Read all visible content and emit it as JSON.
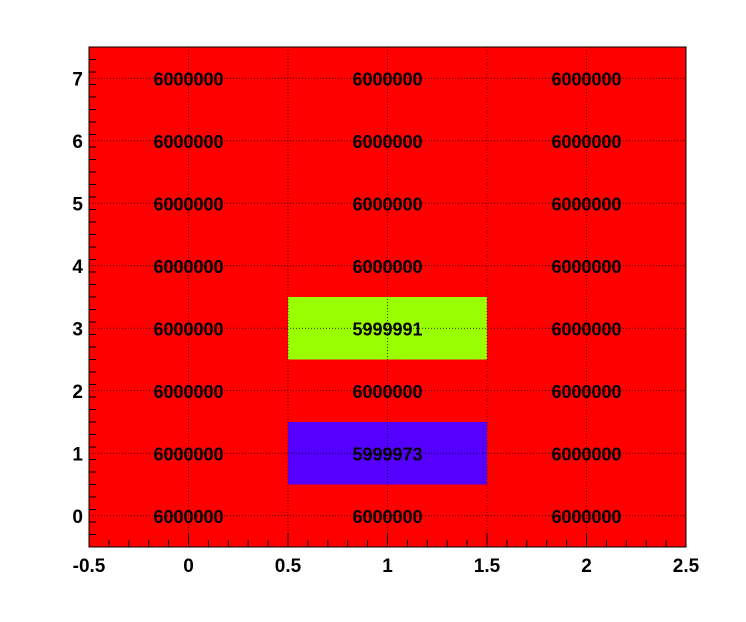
{
  "chart_data": {
    "type": "heatmap",
    "title": "",
    "xlabel": "",
    "ylabel": "",
    "xlim": [
      -0.5,
      2.5
    ],
    "ylim": [
      -0.5,
      7.5
    ],
    "x_ticks": [
      -0.5,
      0,
      0.5,
      1,
      1.5,
      2,
      2.5
    ],
    "x_tick_labels": [
      "-0.5",
      "0",
      "0.5",
      "1",
      "1.5",
      "2",
      "2.5"
    ],
    "y_ticks": [
      0,
      1,
      2,
      3,
      4,
      5,
      6,
      7
    ],
    "y_tick_labels": [
      "0",
      "1",
      "2",
      "3",
      "4",
      "5",
      "6",
      "7"
    ],
    "grid": true,
    "cell_labels": true,
    "x": [
      0,
      1,
      2
    ],
    "y": [
      0,
      1,
      2,
      3,
      4,
      5,
      6,
      7
    ],
    "values": [
      [
        6000000,
        6000000,
        6000000
      ],
      [
        6000000,
        5999973,
        6000000
      ],
      [
        6000000,
        6000000,
        6000000
      ],
      [
        6000000,
        5999991,
        6000000
      ],
      [
        6000000,
        6000000,
        6000000
      ],
      [
        6000000,
        6000000,
        6000000
      ],
      [
        6000000,
        6000000,
        6000000
      ],
      [
        6000000,
        6000000,
        6000000
      ]
    ],
    "value_labels": [
      [
        "6000000",
        "6000000",
        "6000000"
      ],
      [
        "6000000",
        "5999973",
        "6000000"
      ],
      [
        "6000000",
        "6000000",
        "6000000"
      ],
      [
        "6000000",
        "5999991",
        "6000000"
      ],
      [
        "6000000",
        "6000000",
        "6000000"
      ],
      [
        "6000000",
        "6000000",
        "6000000"
      ],
      [
        "6000000",
        "6000000",
        "6000000"
      ],
      [
        "6000000",
        "6000000",
        "6000000"
      ]
    ],
    "colors": {
      "6000000": "#ff0000",
      "5999991": "#99ff00",
      "5999973": "#5500ff",
      "frame": "#000000",
      "background": "#ffffff"
    }
  }
}
